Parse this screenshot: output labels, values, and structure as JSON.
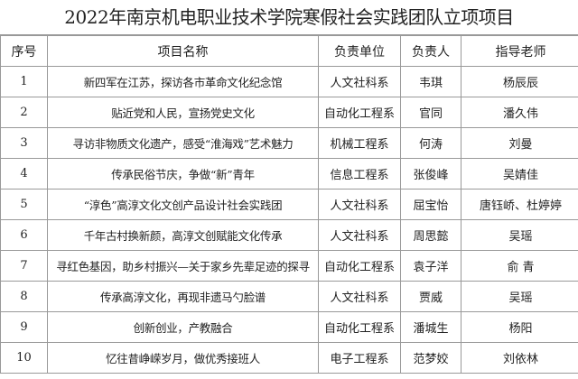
{
  "title": "2022年南京机电职业技术学院寒假社会实践团队立项项目",
  "headers": [
    "序号",
    "项目名称",
    "负责单位",
    "负责人",
    "指导老师"
  ],
  "rows": [
    [
      "1",
      "新四军在江苏，探访各市革命文化纪念馆",
      "人文社科系",
      "韦琪",
      "杨辰辰"
    ],
    [
      "2",
      "贴近党和人民，宣扬党史文化",
      "自动化工程系",
      "官同",
      "潘久伟"
    ],
    [
      "3",
      "寻访非物质文化遗产，感受“淮海戏”艺术魅力",
      "机械工程系",
      "何涛",
      "刘曼"
    ],
    [
      "4",
      "传承民俗节庆，争做“新”青年",
      "信息工程系",
      "张俊峰",
      "吴婧佳"
    ],
    [
      "5",
      "“淳色”高淳文化文创产品设计社会实践团",
      "人文社科系",
      "屈宝怡",
      "唐钰峤、杜婷婷"
    ],
    [
      "6",
      "千年古村换新颜，高淳文创赋能文化传承",
      "人文社科系",
      "周思懿",
      "吴瑶"
    ],
    [
      "7",
      "寻红色基因，助乡村振兴—关于家乡先辈足迹的探寻",
      "自动化工程系",
      "袁子洋",
      "俞 青"
    ],
    [
      "8",
      "传承高淳文化，再现非遗马勺脸谱",
      "人文社科系",
      "贾威",
      "吴瑶"
    ],
    [
      "9",
      "创新创业，产教融合",
      "自动化工程系",
      "潘城生",
      "杨阳"
    ],
    [
      "10",
      "忆往昔峥嵘岁月，做优秀接班人",
      "电子工程系",
      "范梦姣",
      "刘依林"
    ]
  ]
}
